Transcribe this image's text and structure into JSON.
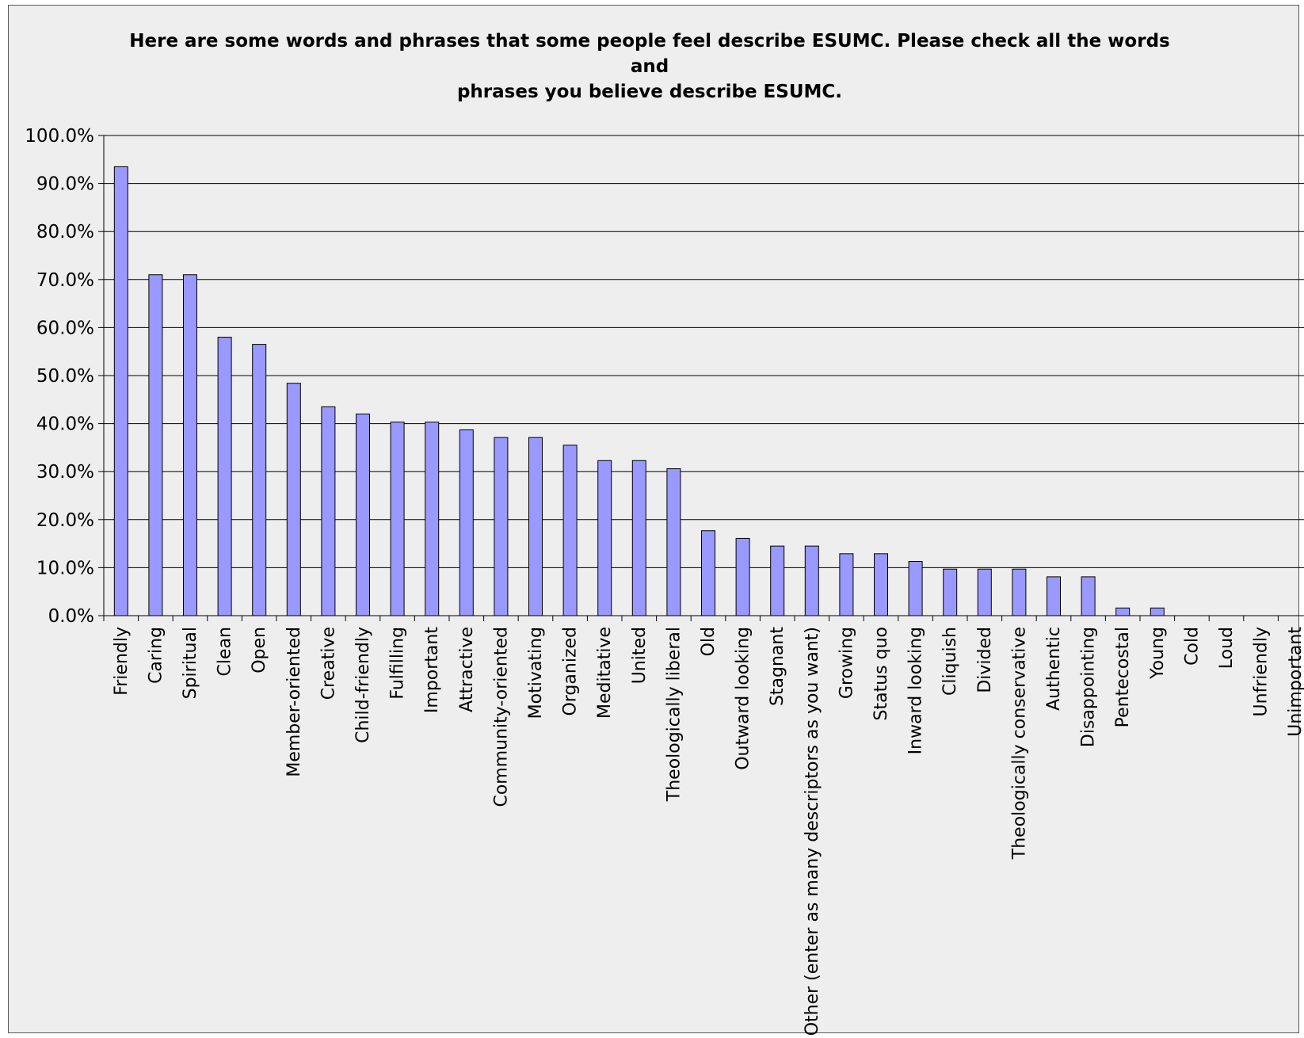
{
  "chart_data": {
    "type": "bar",
    "title": "Here are some words and phrases that some people feel describe ESUMC.  Please check all the words and\nphrases you believe describe ESUMC.",
    "xlabel": "",
    "ylabel": "",
    "ylim": [
      0,
      100
    ],
    "y_ticks": [
      "0.0%",
      "10.0%",
      "20.0%",
      "30.0%",
      "40.0%",
      "50.0%",
      "60.0%",
      "70.0%",
      "80.0%",
      "90.0%",
      "100.0%"
    ],
    "grid": "horizontal",
    "legend": "none",
    "bar_color": "#9999ff",
    "categories": [
      "Friendly",
      "Caring",
      "Spiritual",
      "Clean",
      "Open",
      "Member-oriented",
      "Creative",
      "Child-friendly",
      "Fulfilling",
      "Important",
      "Attractive",
      "Community-oriented",
      "Motivating",
      "Organized",
      "Meditative",
      "United",
      "Theologically liberal",
      "Old",
      "Outward looking",
      "Stagnant",
      "Other (enter as many descriptors as you want)",
      "Growing",
      "Status quo",
      "Inward looking",
      "Cliquish",
      "Divided",
      "Theologically conservative",
      "Authentic",
      "Disappointing",
      "Pentecostal",
      "Young",
      "Cold",
      "Loud",
      "Unfriendly",
      "Unimportant"
    ],
    "values": [
      93.5,
      71.0,
      71.0,
      58.0,
      56.5,
      48.4,
      43.5,
      42.0,
      40.3,
      40.3,
      38.7,
      37.1,
      37.1,
      35.5,
      32.3,
      32.3,
      30.6,
      17.7,
      16.1,
      14.5,
      14.5,
      12.9,
      12.9,
      11.3,
      9.7,
      9.7,
      9.7,
      8.1,
      8.1,
      1.6,
      1.6,
      0.0,
      0.0,
      0.0,
      0.0
    ]
  }
}
